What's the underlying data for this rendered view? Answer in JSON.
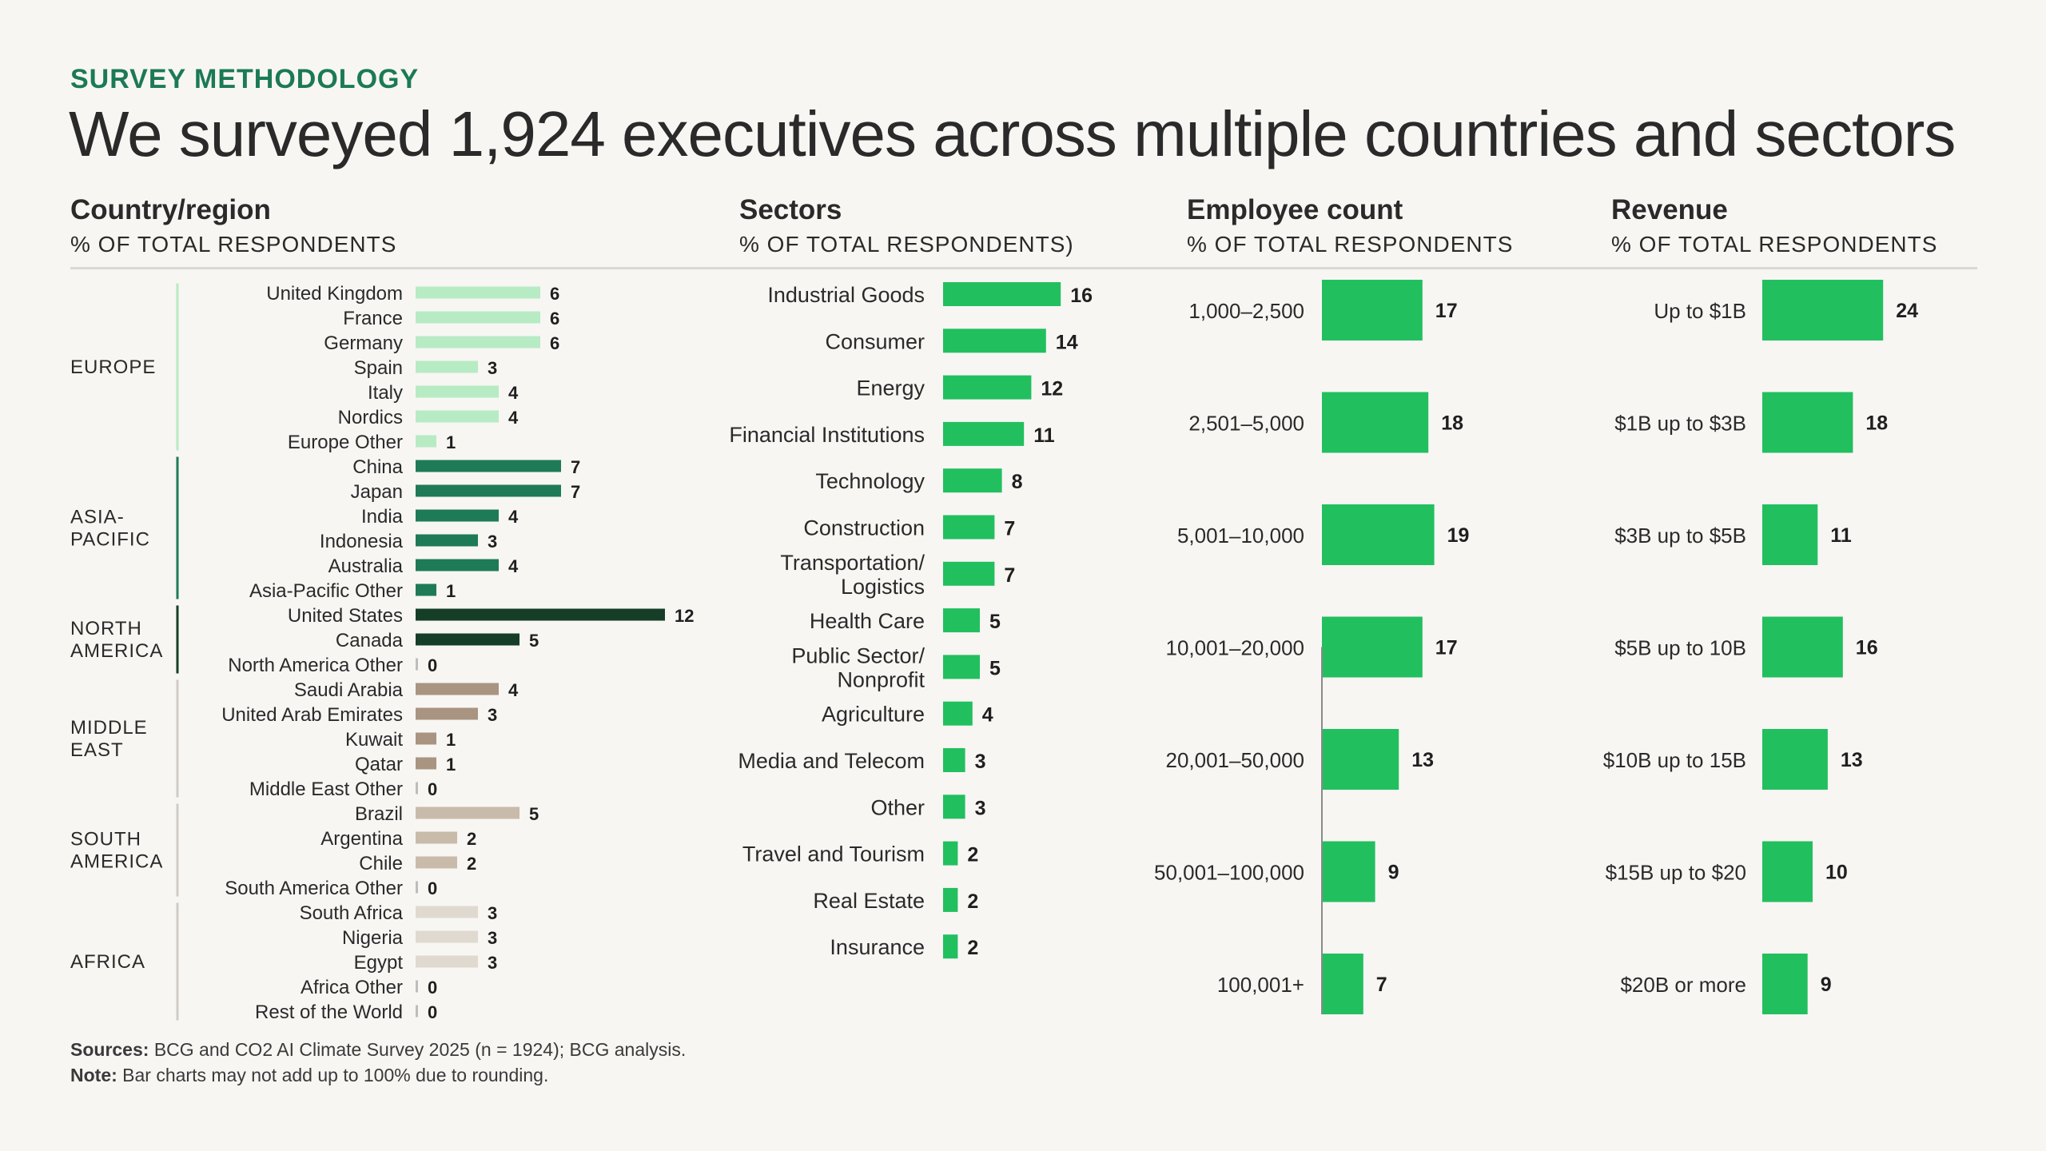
{
  "kicker": "SURVEY METHODOLOGY",
  "title": "We surveyed 1,924 executives across multiple countries and sectors",
  "sections": {
    "country": {
      "heading": "Country/region",
      "sub": "% OF TOTAL RESPONDENTS"
    },
    "sectors": {
      "heading": "Sectors",
      "sub": "% OF TOTAL RESPONDENTS)"
    },
    "employee": {
      "heading": "Employee count",
      "sub": "% OF TOTAL RESPONDENTS"
    },
    "revenue": {
      "heading": "Revenue",
      "sub": "% OF TOTAL RESPONDENTS"
    }
  },
  "footer": {
    "sources_label": "Sources:",
    "sources_text": "BCG and CO2 AI Climate Survey 2025 (n = 1924); BCG analysis.",
    "note_label": "Note:",
    "note_text": "Bar charts may not add up to 100% due to rounding."
  },
  "colors": {
    "europe": "#b7ebc4",
    "asia_pacific": "#1e7a57",
    "north_america": "#163d27",
    "middle_east": "#a89481",
    "south_america": "#c9bbaa",
    "africa": "#e0d9d0",
    "green": "#22bf5f",
    "group_line": "#d0cbc4"
  },
  "chart_data": [
    {
      "type": "bar",
      "orientation": "horizontal",
      "title": "Country/region",
      "groups": [
        {
          "name": "EUROPE",
          "lines": [
            "EUROPE"
          ],
          "color_key": "europe",
          "categories": [
            "United Kingdom",
            "France",
            "Germany",
            "Spain",
            "Italy",
            "Nordics",
            "Europe Other"
          ],
          "values": [
            6,
            6,
            6,
            3,
            4,
            4,
            1
          ]
        },
        {
          "name": "ASIA-PACIFIC",
          "lines": [
            "ASIA-",
            "PACIFIC"
          ],
          "color_key": "asia_pacific",
          "categories": [
            "China",
            "Japan",
            "India",
            "Indonesia",
            "Australia",
            "Asia-Pacific Other"
          ],
          "values": [
            7,
            7,
            4,
            3,
            4,
            1
          ]
        },
        {
          "name": "NORTH AMERICA",
          "lines": [
            "NORTH",
            "AMERICA"
          ],
          "color_key": "north_america",
          "categories": [
            "United States",
            "Canada",
            "North America Other"
          ],
          "values": [
            12,
            5,
            0
          ]
        },
        {
          "name": "MIDDLE EAST",
          "lines": [
            "MIDDLE",
            "EAST"
          ],
          "color_key": "middle_east",
          "categories": [
            "Saudi Arabia",
            "United Arab Emirates",
            "Kuwait",
            "Qatar",
            "Middle East Other"
          ],
          "values": [
            4,
            3,
            1,
            1,
            0
          ]
        },
        {
          "name": "SOUTH AMERICA",
          "lines": [
            "SOUTH",
            "AMERICA"
          ],
          "color_key": "south_america",
          "categories": [
            "Brazil",
            "Argentina",
            "Chile",
            "South America Other"
          ],
          "values": [
            5,
            2,
            2,
            0
          ]
        },
        {
          "name": "AFRICA",
          "lines": [
            "AFRICA"
          ],
          "color_key": "africa",
          "categories": [
            "South Africa",
            "Nigeria",
            "Egypt",
            "Africa Other",
            "Rest of the World"
          ],
          "values": [
            3,
            3,
            3,
            0,
            0
          ]
        }
      ]
    },
    {
      "type": "bar",
      "orientation": "horizontal",
      "title": "Sectors",
      "categories": [
        [
          "Industrial Goods"
        ],
        [
          "Consumer"
        ],
        [
          "Energy"
        ],
        [
          "Financial Institutions"
        ],
        [
          "Technology"
        ],
        [
          "Construction"
        ],
        [
          "Transportation/",
          "Logistics"
        ],
        [
          "Health Care"
        ],
        [
          "Public Sector/",
          "Nonprofit"
        ],
        [
          "Agriculture"
        ],
        [
          "Media and Telecom"
        ],
        [
          "Other"
        ],
        [
          "Travel and Tourism"
        ],
        [
          "Real Estate"
        ],
        [
          "Insurance"
        ]
      ],
      "values": [
        16,
        14,
        12,
        11,
        8,
        7,
        7,
        5,
        5,
        4,
        3,
        3,
        2,
        2,
        2
      ]
    },
    {
      "type": "bar",
      "orientation": "horizontal",
      "title": "Employee count",
      "categories": [
        "1,000–2,500",
        "2,501–5,000",
        "5,001–10,000",
        "10,001–20,000",
        "20,001–50,000",
        "50,001–100,000",
        "100,001+"
      ],
      "values": [
        17,
        18,
        19,
        17,
        13,
        9,
        7
      ]
    },
    {
      "type": "bar",
      "orientation": "horizontal",
      "title": "Revenue",
      "categories": [
        "Up to $1B",
        "$1B up to $3B",
        "$3B up to $5B",
        "$5B up to 10B",
        "$10B up to 15B",
        "$15B up to $20",
        "$20B or more"
      ],
      "values": [
        24,
        18,
        11,
        16,
        13,
        10,
        9
      ]
    }
  ]
}
